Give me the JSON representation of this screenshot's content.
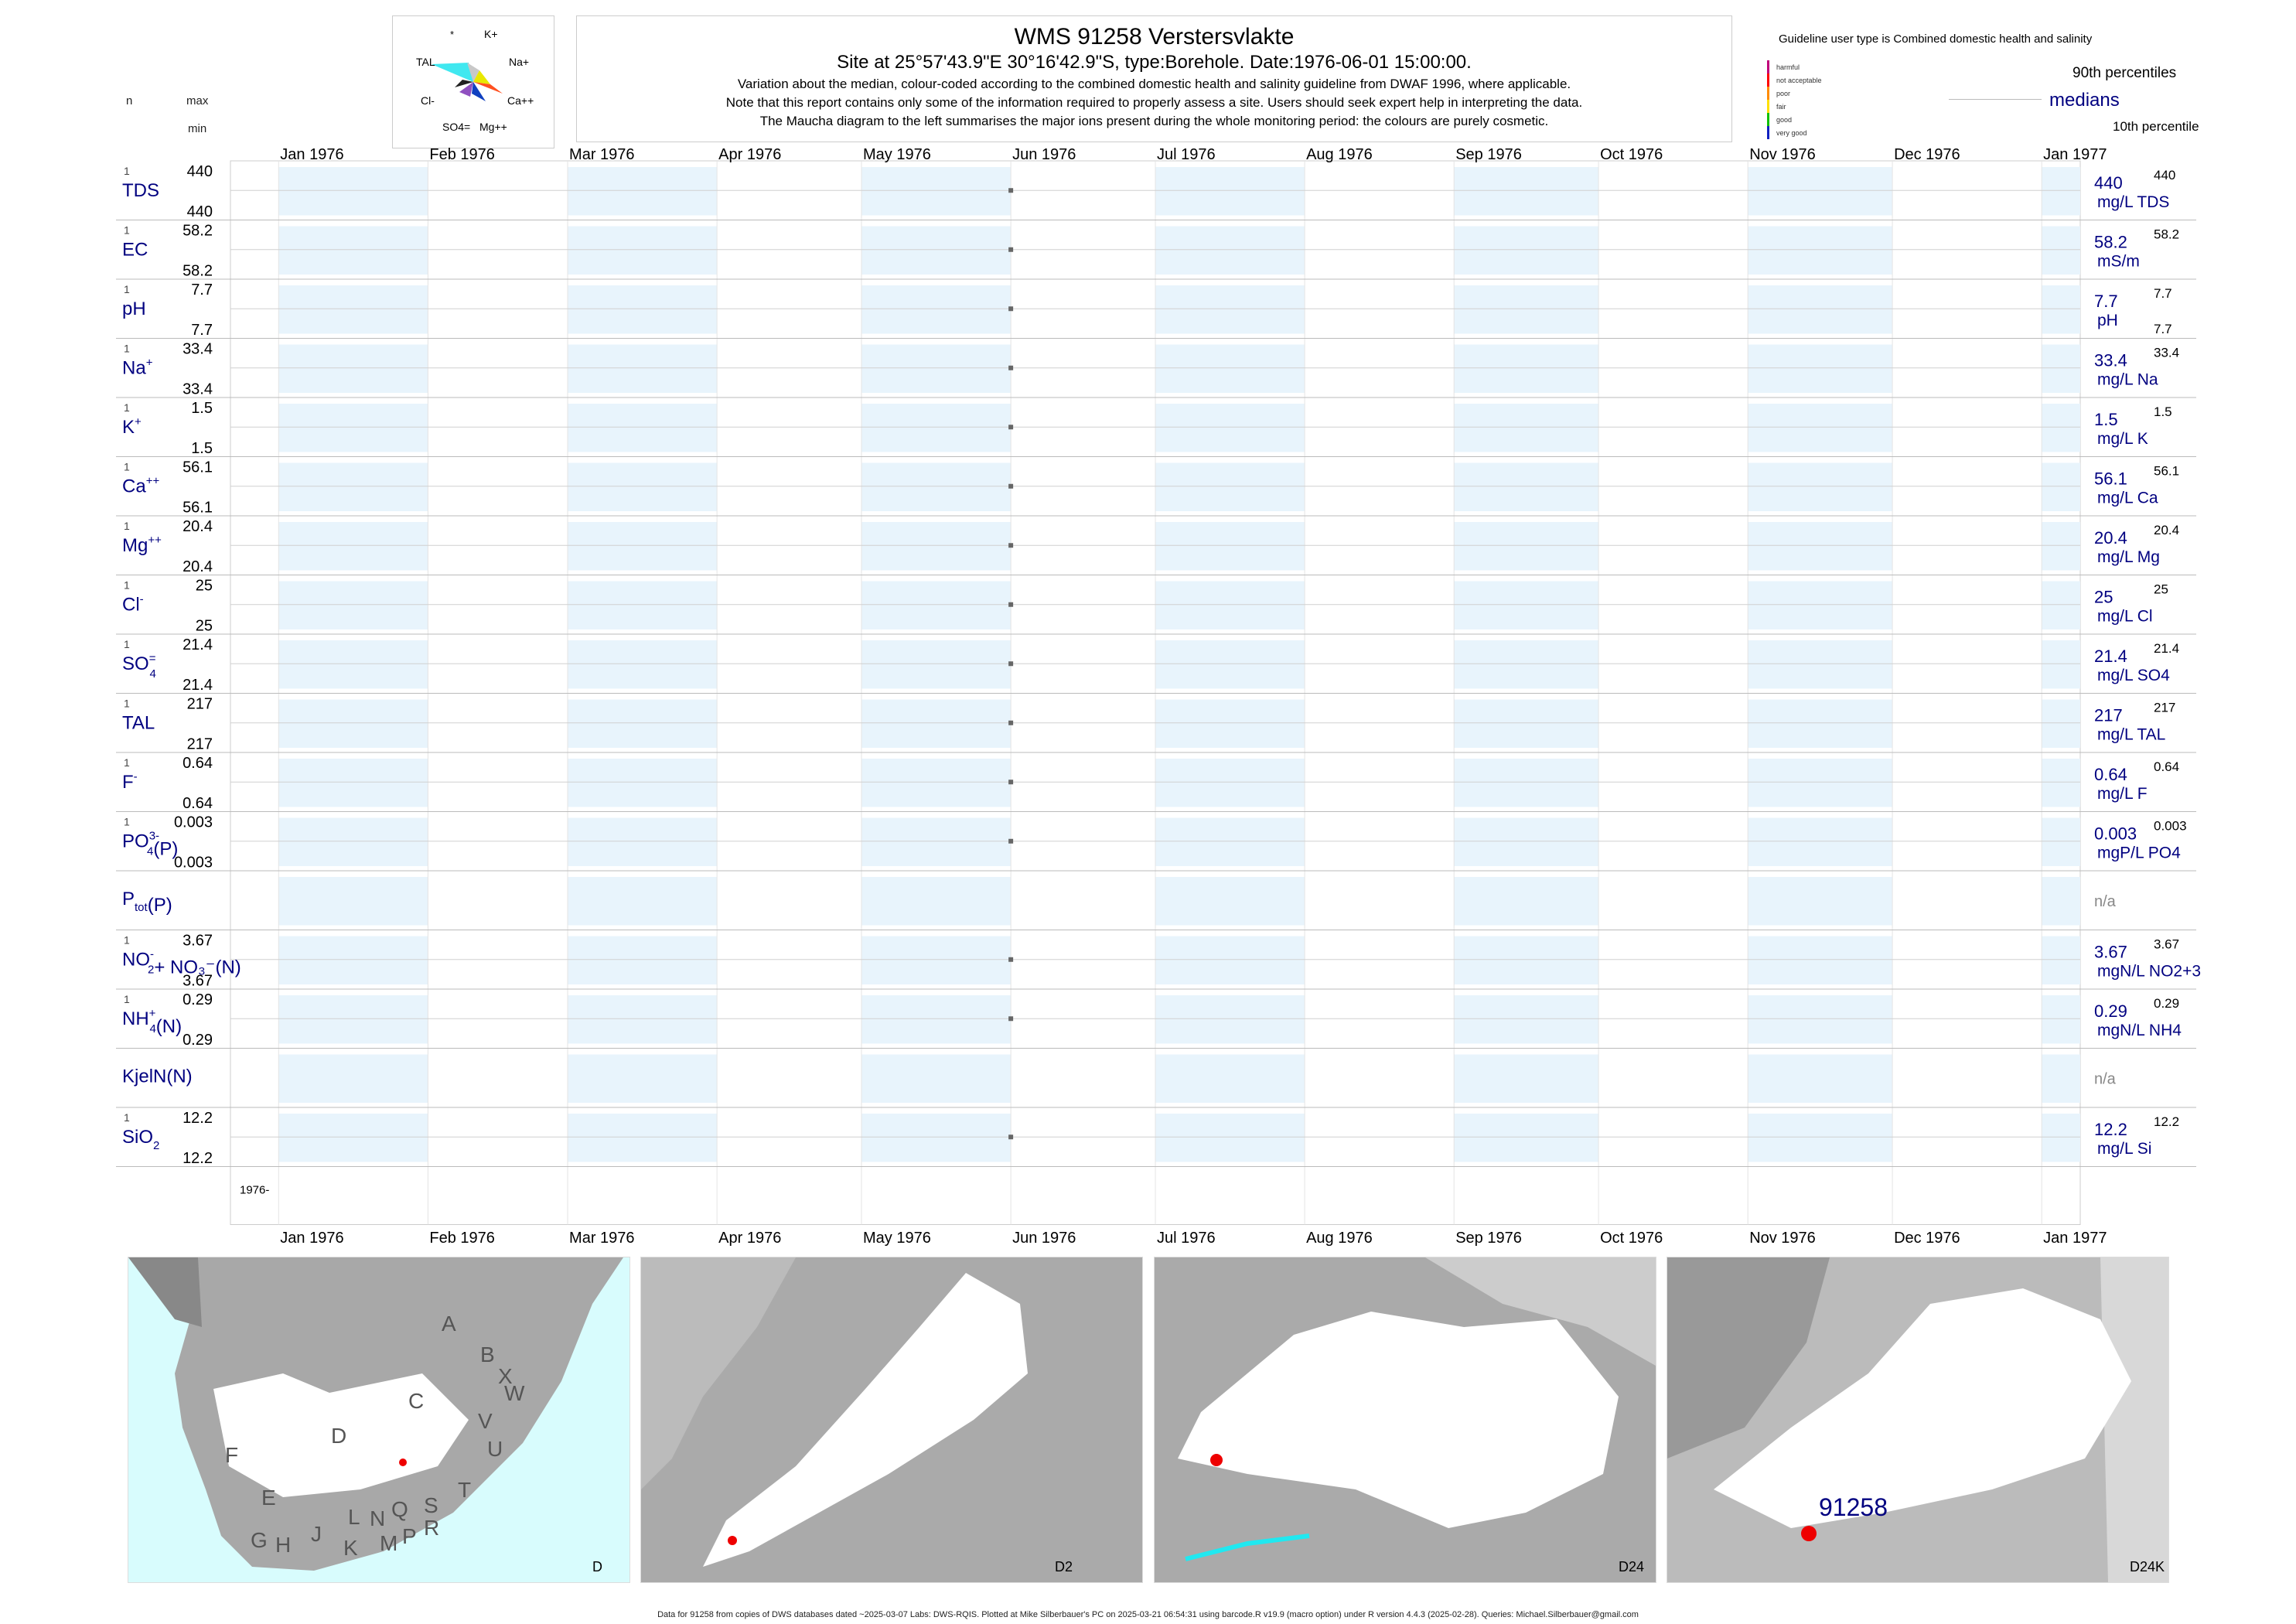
{
  "header": {
    "title": "WMS 91258  Verstersvlakte",
    "subtitle": "Site at 25°57'43.9\"E 30°16'42.9\"S, type:Borehole. Date:1976-06-01 15:00:00.",
    "notes": [
      "Variation about the median,  colour-coded according to the combined domestic health and salinity guideline from DWAF 1996, where applicable.",
      "Note that this report contains only some of the information required to properly assess a site. Users should seek expert help in interpreting the data.",
      "The Maucha diagram to the left summarises the major ions present during the whole monitoring period: the colours are purely cosmetic."
    ],
    "col_n": "n",
    "col_max": "max",
    "col_min": "min"
  },
  "maucha": {
    "labels": [
      "*",
      "K+",
      "TAL",
      "Na+",
      "Cl-",
      "Ca++",
      "SO4=",
      "Mg++"
    ]
  },
  "legend": {
    "guideline_text": "Guideline user type is Combined domestic health and salinity",
    "levels": [
      {
        "label": "harmful",
        "color": "#c0007a"
      },
      {
        "label": "not acceptable",
        "color": "#ff0000"
      },
      {
        "label": "poor",
        "color": "#ff8c00"
      },
      {
        "label": "fair",
        "color": "#ffe000"
      },
      {
        "label": "good",
        "color": "#10c000"
      },
      {
        "label": "very good",
        "color": "#1020c0"
      }
    ],
    "p90": "90th percentiles",
    "median": "medians",
    "p10": "10th percentile"
  },
  "chart_data": {
    "type": "scatter",
    "x_range": [
      "1975-12-22",
      "1977-01-09"
    ],
    "month_ticks": [
      "Jan 1976",
      "Feb 1976",
      "Mar 1976",
      "Apr 1976",
      "May 1976",
      "Jun 1976",
      "Jul 1976",
      "Aug 1976",
      "Sep 1976",
      "Oct 1976",
      "Nov 1976",
      "Dec 1976",
      "Jan 1977"
    ],
    "sample_date": "1976-06-01",
    "year_label": "1976-",
    "colors": {
      "band": "#e8f4fc",
      "point": "#666666",
      "label": "#000080",
      "grid": "#bbbbbb"
    },
    "series": [
      {
        "name": "TDS",
        "sup": "",
        "sub": "",
        "n": "1",
        "max": "440",
        "min": "440",
        "median": "440",
        "unit": "mg/L TDS",
        "right_max": "440",
        "right_min": ""
      },
      {
        "name": "EC",
        "sup": "",
        "sub": "",
        "n": "1",
        "max": "58.2",
        "min": "58.2",
        "median": "58.2",
        "unit": "mS/m",
        "right_max": "58.2",
        "right_min": ""
      },
      {
        "name": "pH",
        "sup": "",
        "sub": "",
        "n": "1",
        "max": "7.7",
        "min": "7.7",
        "median": "7.7",
        "unit": "pH",
        "right_max": "7.7",
        "right_min": "7.7"
      },
      {
        "name": "Na",
        "sup": "+",
        "sub": "",
        "n": "1",
        "max": "33.4",
        "min": "33.4",
        "median": "33.4",
        "unit": "mg/L Na",
        "right_max": "33.4",
        "right_min": ""
      },
      {
        "name": "K",
        "sup": "+",
        "sub": "",
        "n": "1",
        "max": "1.5",
        "min": "1.5",
        "median": "1.5",
        "unit": "mg/L K",
        "right_max": "1.5",
        "right_min": ""
      },
      {
        "name": "Ca",
        "sup": "++",
        "sub": "",
        "n": "1",
        "max": "56.1",
        "min": "56.1",
        "median": "56.1",
        "unit": "mg/L Ca",
        "right_max": "56.1",
        "right_min": ""
      },
      {
        "name": "Mg",
        "sup": "++",
        "sub": "",
        "n": "1",
        "max": "20.4",
        "min": "20.4",
        "median": "20.4",
        "unit": "mg/L Mg",
        "right_max": "20.4",
        "right_min": ""
      },
      {
        "name": "Cl",
        "sup": "-",
        "sub": "",
        "n": "1",
        "max": "25",
        "min": "25",
        "median": "25",
        "unit": "mg/L Cl",
        "right_max": "25",
        "right_min": ""
      },
      {
        "name": "SO",
        "sup": "=",
        "sub": "4",
        "n": "1",
        "max": "21.4",
        "min": "21.4",
        "median": "21.4",
        "unit": "mg/L SO4",
        "right_max": "21.4",
        "right_min": ""
      },
      {
        "name": "TAL",
        "sup": "",
        "sub": "",
        "n": "1",
        "max": "217",
        "min": "217",
        "median": "217",
        "unit": "mg/L TAL",
        "right_max": "217",
        "right_min": ""
      },
      {
        "name": "F",
        "sup": "-",
        "sub": "",
        "n": "1",
        "max": "0.64",
        "min": "0.64",
        "median": "0.64",
        "unit": "mg/L F",
        "right_max": "0.64",
        "right_min": ""
      },
      {
        "name": "PO",
        "sup": "3-",
        "sub": "4",
        "tail": "(P)",
        "n": "1",
        "max": "0.003",
        "min": "0.003",
        "median": "0.003",
        "unit": "mgP/L PO4",
        "right_max": "0.003",
        "right_min": ""
      },
      {
        "name": "P",
        "sup": "",
        "sub": "tot",
        "tail": "(P)",
        "n": "",
        "max": "",
        "min": "",
        "median": "n/a",
        "unit": "",
        "right_max": "",
        "right_min": "",
        "na": true
      },
      {
        "name": "NO",
        "sup": "-",
        "sub": "2",
        "tail": "+ NO₃⁻(N)",
        "n": "1",
        "max": "3.67",
        "min": "3.67",
        "median": "3.67",
        "unit": "mgN/L NO2+3",
        "right_max": "3.67",
        "right_min": ""
      },
      {
        "name": "NH",
        "sup": "+",
        "sub": "4",
        "tail": "(N)",
        "n": "1",
        "max": "0.29",
        "min": "0.29",
        "median": "0.29",
        "unit": "mgN/L NH4",
        "right_max": "0.29",
        "right_min": ""
      },
      {
        "name": "KjelN(N)",
        "sup": "",
        "sub": "",
        "n": "",
        "max": "",
        "min": "",
        "median": "n/a",
        "unit": "",
        "right_max": "",
        "right_min": "",
        "na": true
      },
      {
        "name": "SiO",
        "sup": "",
        "sub": "2",
        "n": "1",
        "max": "12.2",
        "min": "12.2",
        "median": "12.2",
        "unit": "mg/L Si",
        "right_max": "12.2",
        "right_min": ""
      }
    ]
  },
  "maps": [
    {
      "label": "D",
      "regions": [
        "A",
        "B",
        "X",
        "C",
        "W",
        "D",
        "V",
        "U",
        "F",
        "T",
        "E",
        "S",
        "G",
        "H",
        "J",
        "K",
        "L",
        "N",
        "Q",
        "M",
        "P",
        "R"
      ]
    },
    {
      "label": "D2"
    },
    {
      "label": "D24"
    },
    {
      "label": "D24K",
      "site": "91258"
    }
  ],
  "footer": "Data for 91258 from copies of DWS databases dated ~2025-03-07 Labs: DWS-RQIS. Plotted at Mike Silberbauer's PC on 2025-03-21 06:54:31 using barcode.R v19.9 (macro option) under R version 4.4.3 (2025-02-28). Queries: Michael.Silberbauer@gmail.com"
}
